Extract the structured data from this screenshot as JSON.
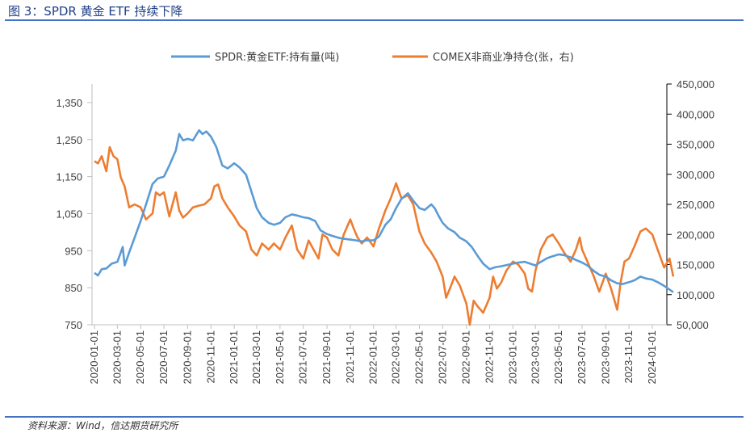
{
  "figure": {
    "title": "图 3：SPDR 黄金 ETF 持续下降",
    "source": "资料来源：Wind，信达期货研究所"
  },
  "colors": {
    "spdr": "#5b9bd5",
    "comex": "#ed7d31",
    "rule": "#4472c4"
  },
  "chart_data": {
    "type": "line",
    "title": "",
    "x_labels": [
      "2020-01-01",
      "2020-03-01",
      "2020-05-01",
      "2020-07-01",
      "2020-09-01",
      "2020-11-01",
      "2021-01-01",
      "2021-03-01",
      "2021-05-01",
      "2021-07-01",
      "2021-09-01",
      "2021-11-01",
      "2022-01-01",
      "2022-03-01",
      "2022-05-01",
      "2022-07-01",
      "2022-09-01",
      "2022-11-01",
      "2023-01-01",
      "2023-03-01",
      "2023-05-01",
      "2023-07-01",
      "2023-09-01",
      "2023-11-01",
      "2024-01-01"
    ],
    "y_left": {
      "ticks": [
        "750",
        "850",
        "950",
        "1,050",
        "1,150",
        "1,250",
        "1,350"
      ],
      "range": [
        750,
        1400
      ]
    },
    "y_right": {
      "ticks": [
        "50,000",
        "100,000",
        "150,000",
        "200,000",
        "250,000",
        "300,000",
        "350,000",
        "400,000",
        "450,000"
      ],
      "range": [
        50000,
        450000
      ]
    },
    "legend_position": "top",
    "grid": false,
    "series": [
      {
        "name": "SPDR:黄金ETF:持有量(吨)",
        "axis": "left",
        "points": [
          [
            "2020-01-01",
            890
          ],
          [
            "2020-01-10",
            883
          ],
          [
            "2020-01-20",
            900
          ],
          [
            "2020-02-01",
            902
          ],
          [
            "2020-02-15",
            915
          ],
          [
            "2020-03-01",
            920
          ],
          [
            "2020-03-10",
            945
          ],
          [
            "2020-03-15",
            960
          ],
          [
            "2020-03-20",
            910
          ],
          [
            "2020-04-01",
            945
          ],
          [
            "2020-04-15",
            985
          ],
          [
            "2020-05-01",
            1030
          ],
          [
            "2020-05-15",
            1075
          ],
          [
            "2020-06-01",
            1130
          ],
          [
            "2020-06-15",
            1145
          ],
          [
            "2020-07-01",
            1150
          ],
          [
            "2020-07-15",
            1180
          ],
          [
            "2020-08-01",
            1220
          ],
          [
            "2020-08-10",
            1265
          ],
          [
            "2020-08-20",
            1248
          ],
          [
            "2020-09-01",
            1252
          ],
          [
            "2020-09-15",
            1248
          ],
          [
            "2020-10-01",
            1275
          ],
          [
            "2020-10-10",
            1265
          ],
          [
            "2020-10-20",
            1272
          ],
          [
            "2020-11-01",
            1258
          ],
          [
            "2020-11-15",
            1230
          ],
          [
            "2020-12-01",
            1180
          ],
          [
            "2020-12-15",
            1172
          ],
          [
            "2021-01-01",
            1186
          ],
          [
            "2021-01-15",
            1175
          ],
          [
            "2021-02-01",
            1155
          ],
          [
            "2021-02-15",
            1110
          ],
          [
            "2021-03-01",
            1065
          ],
          [
            "2021-03-15",
            1040
          ],
          [
            "2021-04-01",
            1025
          ],
          [
            "2021-04-15",
            1020
          ],
          [
            "2021-05-01",
            1025
          ],
          [
            "2021-05-15",
            1040
          ],
          [
            "2021-06-01",
            1048
          ],
          [
            "2021-06-15",
            1045
          ],
          [
            "2021-07-01",
            1040
          ],
          [
            "2021-07-15",
            1038
          ],
          [
            "2021-08-01",
            1030
          ],
          [
            "2021-08-15",
            1005
          ],
          [
            "2021-09-01",
            995
          ],
          [
            "2021-09-15",
            990
          ],
          [
            "2021-10-01",
            985
          ],
          [
            "2021-10-15",
            982
          ],
          [
            "2021-11-01",
            980
          ],
          [
            "2021-11-15",
            978
          ],
          [
            "2021-12-01",
            975
          ],
          [
            "2021-12-15",
            978
          ],
          [
            "2022-01-01",
            978
          ],
          [
            "2022-01-15",
            988
          ],
          [
            "2022-02-01",
            1020
          ],
          [
            "2022-02-15",
            1035
          ],
          [
            "2022-03-01",
            1065
          ],
          [
            "2022-03-15",
            1090
          ],
          [
            "2022-04-01",
            1105
          ],
          [
            "2022-04-15",
            1085
          ],
          [
            "2022-05-01",
            1065
          ],
          [
            "2022-05-15",
            1060
          ],
          [
            "2022-06-01",
            1075
          ],
          [
            "2022-06-10",
            1065
          ],
          [
            "2022-06-20",
            1045
          ],
          [
            "2022-07-01",
            1025
          ],
          [
            "2022-07-15",
            1010
          ],
          [
            "2022-08-01",
            1000
          ],
          [
            "2022-08-15",
            985
          ],
          [
            "2022-09-01",
            975
          ],
          [
            "2022-09-15",
            960
          ],
          [
            "2022-10-01",
            935
          ],
          [
            "2022-10-15",
            915
          ],
          [
            "2022-11-01",
            900
          ],
          [
            "2022-11-15",
            905
          ],
          [
            "2022-12-01",
            908
          ],
          [
            "2023-01-01",
            915
          ],
          [
            "2023-01-15",
            918
          ],
          [
            "2023-02-01",
            920
          ],
          [
            "2023-02-15",
            915
          ],
          [
            "2023-03-01",
            910
          ],
          [
            "2023-03-15",
            920
          ],
          [
            "2023-04-01",
            930
          ],
          [
            "2023-04-15",
            935
          ],
          [
            "2023-05-01",
            940
          ],
          [
            "2023-05-15",
            938
          ],
          [
            "2023-06-01",
            932
          ],
          [
            "2023-06-15",
            925
          ],
          [
            "2023-07-01",
            918
          ],
          [
            "2023-07-15",
            910
          ],
          [
            "2023-08-01",
            895
          ],
          [
            "2023-08-15",
            885
          ],
          [
            "2023-09-01",
            880
          ],
          [
            "2023-09-15",
            870
          ],
          [
            "2023-10-01",
            862
          ],
          [
            "2023-10-15",
            860
          ],
          [
            "2023-11-01",
            865
          ],
          [
            "2023-11-15",
            870
          ],
          [
            "2023-12-01",
            880
          ],
          [
            "2023-12-15",
            875
          ],
          [
            "2024-01-01",
            872
          ],
          [
            "2024-01-15",
            865
          ],
          [
            "2024-02-01",
            855
          ],
          [
            "2024-02-15",
            845
          ],
          [
            "2024-02-25",
            838
          ]
        ]
      },
      {
        "name": "COMEX非商业净持仓(张，右)",
        "axis": "right",
        "points": [
          [
            "2020-01-01",
            322000
          ],
          [
            "2020-01-10",
            318000
          ],
          [
            "2020-01-20",
            330000
          ],
          [
            "2020-02-01",
            305000
          ],
          [
            "2020-02-10",
            345000
          ],
          [
            "2020-02-20",
            330000
          ],
          [
            "2020-03-01",
            325000
          ],
          [
            "2020-03-10",
            295000
          ],
          [
            "2020-03-20",
            280000
          ],
          [
            "2020-04-01",
            245000
          ],
          [
            "2020-04-15",
            250000
          ],
          [
            "2020-05-01",
            245000
          ],
          [
            "2020-05-15",
            225000
          ],
          [
            "2020-06-01",
            235000
          ],
          [
            "2020-06-10",
            270000
          ],
          [
            "2020-06-20",
            265000
          ],
          [
            "2020-07-01",
            270000
          ],
          [
            "2020-07-15",
            230000
          ],
          [
            "2020-08-01",
            270000
          ],
          [
            "2020-08-10",
            240000
          ],
          [
            "2020-08-20",
            228000
          ],
          [
            "2020-09-01",
            235000
          ],
          [
            "2020-09-15",
            245000
          ],
          [
            "2020-10-01",
            248000
          ],
          [
            "2020-10-15",
            250000
          ],
          [
            "2020-11-01",
            260000
          ],
          [
            "2020-11-10",
            280000
          ],
          [
            "2020-11-20",
            283000
          ],
          [
            "2020-12-01",
            260000
          ],
          [
            "2020-12-15",
            245000
          ],
          [
            "2021-01-01",
            230000
          ],
          [
            "2021-01-15",
            215000
          ],
          [
            "2021-02-01",
            205000
          ],
          [
            "2021-02-15",
            175000
          ],
          [
            "2021-03-01",
            165000
          ],
          [
            "2021-03-15",
            185000
          ],
          [
            "2021-04-01",
            175000
          ],
          [
            "2021-04-15",
            185000
          ],
          [
            "2021-05-01",
            175000
          ],
          [
            "2021-05-15",
            195000
          ],
          [
            "2021-06-01",
            215000
          ],
          [
            "2021-06-15",
            175000
          ],
          [
            "2021-07-01",
            160000
          ],
          [
            "2021-07-15",
            190000
          ],
          [
            "2021-08-01",
            170000
          ],
          [
            "2021-08-10",
            160000
          ],
          [
            "2021-08-20",
            200000
          ],
          [
            "2021-09-01",
            195000
          ],
          [
            "2021-09-15",
            175000
          ],
          [
            "2021-10-01",
            165000
          ],
          [
            "2021-10-15",
            200000
          ],
          [
            "2021-11-01",
            225000
          ],
          [
            "2021-11-10",
            210000
          ],
          [
            "2021-11-20",
            195000
          ],
          [
            "2021-12-01",
            185000
          ],
          [
            "2021-12-15",
            195000
          ],
          [
            "2022-01-01",
            180000
          ],
          [
            "2022-01-15",
            210000
          ],
          [
            "2022-02-01",
            240000
          ],
          [
            "2022-02-15",
            260000
          ],
          [
            "2022-03-01",
            285000
          ],
          [
            "2022-03-15",
            260000
          ],
          [
            "2022-04-01",
            265000
          ],
          [
            "2022-04-15",
            250000
          ],
          [
            "2022-05-01",
            205000
          ],
          [
            "2022-05-15",
            185000
          ],
          [
            "2022-06-01",
            170000
          ],
          [
            "2022-06-15",
            155000
          ],
          [
            "2022-07-01",
            130000
          ],
          [
            "2022-07-10",
            95000
          ],
          [
            "2022-07-20",
            110000
          ],
          [
            "2022-08-01",
            130000
          ],
          [
            "2022-08-15",
            115000
          ],
          [
            "2022-09-01",
            85000
          ],
          [
            "2022-09-10",
            50000
          ],
          [
            "2022-09-20",
            90000
          ],
          [
            "2022-10-01",
            80000
          ],
          [
            "2022-10-15",
            70000
          ],
          [
            "2022-11-01",
            95000
          ],
          [
            "2022-11-10",
            130000
          ],
          [
            "2022-11-20",
            110000
          ],
          [
            "2022-12-01",
            120000
          ],
          [
            "2022-12-15",
            140000
          ],
          [
            "2023-01-01",
            155000
          ],
          [
            "2023-01-15",
            150000
          ],
          [
            "2023-02-01",
            135000
          ],
          [
            "2023-02-10",
            110000
          ],
          [
            "2023-02-20",
            105000
          ],
          [
            "2023-03-01",
            140000
          ],
          [
            "2023-03-15",
            175000
          ],
          [
            "2023-04-01",
            195000
          ],
          [
            "2023-04-15",
            200000
          ],
          [
            "2023-05-01",
            185000
          ],
          [
            "2023-05-15",
            170000
          ],
          [
            "2023-06-01",
            155000
          ],
          [
            "2023-06-15",
            175000
          ],
          [
            "2023-06-25",
            195000
          ],
          [
            "2023-07-01",
            175000
          ],
          [
            "2023-07-15",
            155000
          ],
          [
            "2023-08-01",
            130000
          ],
          [
            "2023-08-15",
            105000
          ],
          [
            "2023-09-01",
            135000
          ],
          [
            "2023-09-15",
            110000
          ],
          [
            "2023-10-01",
            75000
          ],
          [
            "2023-10-10",
            120000
          ],
          [
            "2023-10-20",
            155000
          ],
          [
            "2023-11-01",
            160000
          ],
          [
            "2023-11-15",
            180000
          ],
          [
            "2023-12-01",
            205000
          ],
          [
            "2023-12-15",
            210000
          ],
          [
            "2024-01-01",
            200000
          ],
          [
            "2024-01-15",
            175000
          ],
          [
            "2024-02-01",
            145000
          ],
          [
            "2024-02-15",
            160000
          ],
          [
            "2024-02-25",
            130000
          ]
        ]
      }
    ]
  }
}
